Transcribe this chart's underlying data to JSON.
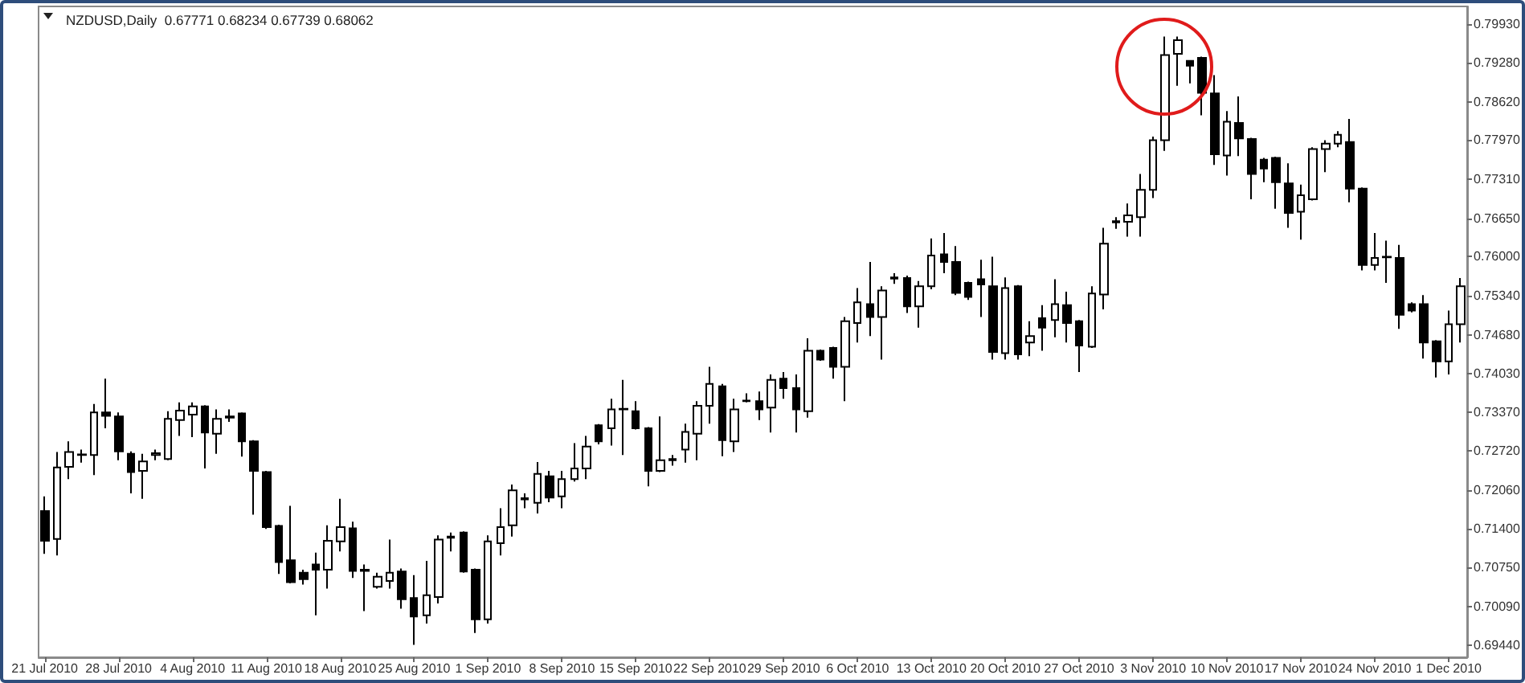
{
  "chart_data": {
    "type": "candlestick",
    "title": "NZDUSD,Daily  0.67771 0.68234 0.67739 0.68062",
    "categories": [
      "21 Jul 2010",
      null,
      null,
      null,
      null,
      null,
      "28 Jul 2010",
      null,
      null,
      null,
      null,
      null,
      "4 Aug 2010",
      null,
      null,
      null,
      null,
      null,
      "11 Aug 2010",
      null,
      null,
      null,
      null,
      null,
      "18 Aug 2010",
      null,
      null,
      null,
      null,
      null,
      "25 Aug 2010",
      null,
      null,
      null,
      null,
      null,
      "1 Sep 2010",
      null,
      null,
      null,
      null,
      null,
      "8 Sep 2010",
      null,
      null,
      null,
      null,
      null,
      "15 Sep 2010",
      null,
      null,
      null,
      null,
      null,
      "22 Sep 2010",
      null,
      null,
      null,
      null,
      null,
      "29 Sep 2010",
      null,
      null,
      null,
      null,
      null,
      "6 Oct 2010",
      null,
      null,
      null,
      null,
      null,
      "13 Oct 2010",
      null,
      null,
      null,
      null,
      null,
      "20 Oct 2010",
      null,
      null,
      null,
      null,
      null,
      "27 Oct 2010",
      null,
      null,
      null,
      null,
      null,
      "3 Nov 2010",
      null,
      null,
      null,
      null,
      null,
      "10 Nov 2010",
      null,
      null,
      null,
      null,
      null,
      "17 Nov 2010",
      null,
      null,
      null,
      null,
      null,
      "24 Nov 2010",
      null,
      null,
      null,
      null,
      null,
      "1 Dec 2010",
      null
    ],
    "ohlc": [
      [
        0.717,
        0.7195,
        0.7098,
        0.712
      ],
      [
        0.7123,
        0.727,
        0.7095,
        0.7244
      ],
      [
        0.7245,
        0.7288,
        0.7224,
        0.727
      ],
      [
        0.7265,
        0.7274,
        0.7252,
        0.7266
      ],
      [
        0.7265,
        0.7351,
        0.7231,
        0.7337
      ],
      [
        0.7337,
        0.7394,
        0.731,
        0.7331
      ],
      [
        0.733,
        0.7337,
        0.7256,
        0.7271
      ],
      [
        0.7267,
        0.7271,
        0.72,
        0.7236
      ],
      [
        0.7238,
        0.7267,
        0.7191,
        0.7254
      ],
      [
        0.7265,
        0.7274,
        0.7256,
        0.7268
      ],
      [
        0.7258,
        0.7339,
        0.7256,
        0.7326
      ],
      [
        0.7324,
        0.7354,
        0.7297,
        0.734
      ],
      [
        0.7333,
        0.7354,
        0.7295,
        0.7347
      ],
      [
        0.7347,
        0.7349,
        0.7242,
        0.7303
      ],
      [
        0.7301,
        0.7342,
        0.7267,
        0.7326
      ],
      [
        0.7328,
        0.7342,
        0.7321,
        0.733
      ],
      [
        0.7335,
        0.7337,
        0.7262,
        0.7288
      ],
      [
        0.7288,
        0.729,
        0.7164,
        0.7238
      ],
      [
        0.7236,
        0.7238,
        0.714,
        0.7143
      ],
      [
        0.7145,
        0.7147,
        0.7064,
        0.7084
      ],
      [
        0.7087,
        0.7179,
        0.7048,
        0.705
      ],
      [
        0.7066,
        0.7071,
        0.7046,
        0.7055
      ],
      [
        0.708,
        0.71,
        0.6994,
        0.7071
      ],
      [
        0.7071,
        0.7146,
        0.7039,
        0.712
      ],
      [
        0.7119,
        0.7191,
        0.7102,
        0.7143
      ],
      [
        0.7141,
        0.7152,
        0.7057,
        0.7069
      ],
      [
        0.7071,
        0.708,
        0.7001,
        0.7069
      ],
      [
        0.7042,
        0.7066,
        0.7039,
        0.7059
      ],
      [
        0.7052,
        0.7122,
        0.7039,
        0.7066
      ],
      [
        0.7068,
        0.7073,
        0.7005,
        0.7021
      ],
      [
        0.7023,
        0.7062,
        0.6944,
        0.6992
      ],
      [
        0.6994,
        0.7086,
        0.698,
        0.7028
      ],
      [
        0.7025,
        0.7129,
        0.7014,
        0.7122
      ],
      [
        0.7125,
        0.7134,
        0.7102,
        0.7127
      ],
      [
        0.7134,
        0.7136,
        0.7066,
        0.7068
      ],
      [
        0.7071,
        0.7073,
        0.6964,
        0.6987
      ],
      [
        0.6987,
        0.7129,
        0.698,
        0.7119
      ],
      [
        0.7116,
        0.7175,
        0.7095,
        0.7143
      ],
      [
        0.7146,
        0.7215,
        0.7127,
        0.7205
      ],
      [
        0.719,
        0.72,
        0.7175,
        0.7192
      ],
      [
        0.7184,
        0.7253,
        0.7166,
        0.7233
      ],
      [
        0.7229,
        0.7238,
        0.7185,
        0.7193
      ],
      [
        0.7195,
        0.7238,
        0.7175,
        0.7224
      ],
      [
        0.7224,
        0.7285,
        0.722,
        0.7242
      ],
      [
        0.7242,
        0.7297,
        0.7224,
        0.7279
      ],
      [
        0.7315,
        0.7317,
        0.7283,
        0.7288
      ],
      [
        0.731,
        0.736,
        0.7281,
        0.7342
      ],
      [
        0.7342,
        0.7392,
        0.7265,
        0.7343
      ],
      [
        0.7339,
        0.7356,
        0.7308,
        0.731
      ],
      [
        0.731,
        0.7312,
        0.7212,
        0.7238
      ],
      [
        0.7238,
        0.733,
        0.7236,
        0.7256
      ],
      [
        0.7256,
        0.7265,
        0.7247,
        0.7258
      ],
      [
        0.7274,
        0.7318,
        0.7252,
        0.7304
      ],
      [
        0.7301,
        0.7356,
        0.7256,
        0.7348
      ],
      [
        0.7348,
        0.7414,
        0.7318,
        0.7385
      ],
      [
        0.7381,
        0.7385,
        0.7263,
        0.729
      ],
      [
        0.7288,
        0.736,
        0.727,
        0.7342
      ],
      [
        0.7356,
        0.7369,
        0.7354,
        0.7357
      ],
      [
        0.7356,
        0.7372,
        0.7324,
        0.7342
      ],
      [
        0.7345,
        0.7401,
        0.7303,
        0.7392
      ],
      [
        0.7394,
        0.7405,
        0.736,
        0.7378
      ],
      [
        0.7378,
        0.7401,
        0.7303,
        0.7342
      ],
      [
        0.7339,
        0.7462,
        0.7328,
        0.7441
      ],
      [
        0.7441,
        0.7443,
        0.7424,
        0.7426
      ],
      [
        0.7446,
        0.7448,
        0.7394,
        0.7414
      ],
      [
        0.7414,
        0.7498,
        0.7356,
        0.7491
      ],
      [
        0.7488,
        0.7547,
        0.7455,
        0.7523
      ],
      [
        0.752,
        0.7591,
        0.7466,
        0.7498
      ],
      [
        0.7498,
        0.755,
        0.7426,
        0.7543
      ],
      [
        0.7563,
        0.7572,
        0.7554,
        0.7565
      ],
      [
        0.7564,
        0.7568,
        0.7505,
        0.7516
      ],
      [
        0.7516,
        0.7559,
        0.748,
        0.755
      ],
      [
        0.755,
        0.7631,
        0.7545,
        0.7602
      ],
      [
        0.7604,
        0.764,
        0.7572,
        0.7591
      ],
      [
        0.7591,
        0.7618,
        0.7535,
        0.7539
      ],
      [
        0.7556,
        0.7558,
        0.7527,
        0.7532
      ],
      [
        0.7562,
        0.7595,
        0.7498,
        0.7553
      ],
      [
        0.755,
        0.76,
        0.7426,
        0.7439
      ],
      [
        0.7437,
        0.7565,
        0.7426,
        0.7547
      ],
      [
        0.755,
        0.7552,
        0.7426,
        0.7435
      ],
      [
        0.7455,
        0.7491,
        0.7432,
        0.7466
      ],
      [
        0.7496,
        0.7518,
        0.7441,
        0.748
      ],
      [
        0.7493,
        0.7562,
        0.7464,
        0.752
      ],
      [
        0.7518,
        0.7541,
        0.7455,
        0.7488
      ],
      [
        0.7491,
        0.7493,
        0.7405,
        0.745
      ],
      [
        0.7448,
        0.755,
        0.7446,
        0.7538
      ],
      [
        0.7536,
        0.7649,
        0.7511,
        0.7622
      ],
      [
        0.7658,
        0.7667,
        0.7647,
        0.766
      ],
      [
        0.7659,
        0.769,
        0.7634,
        0.767
      ],
      [
        0.7667,
        0.774,
        0.7634,
        0.7713
      ],
      [
        0.7713,
        0.7803,
        0.7699,
        0.7797
      ],
      [
        0.7797,
        0.7972,
        0.7779,
        0.7941
      ],
      [
        0.7943,
        0.7972,
        0.7889,
        0.7966
      ],
      [
        0.7931,
        0.7932,
        0.7893,
        0.7923
      ],
      [
        0.7936,
        0.7938,
        0.7839,
        0.7877
      ],
      [
        0.7876,
        0.7907,
        0.7755,
        0.7773
      ],
      [
        0.7771,
        0.7846,
        0.7737,
        0.7828
      ],
      [
        0.7826,
        0.7871,
        0.777,
        0.78
      ],
      [
        0.7799,
        0.7801,
        0.7697,
        0.774
      ],
      [
        0.7764,
        0.7767,
        0.7726,
        0.7749
      ],
      [
        0.7767,
        0.7769,
        0.7681,
        0.7726
      ],
      [
        0.7724,
        0.7758,
        0.7649,
        0.7674
      ],
      [
        0.7676,
        0.7722,
        0.7629,
        0.7704
      ],
      [
        0.7697,
        0.7785,
        0.7695,
        0.7782
      ],
      [
        0.7782,
        0.7797,
        0.7743,
        0.7791
      ],
      [
        0.7791,
        0.7812,
        0.7785,
        0.7806
      ],
      [
        0.7794,
        0.7833,
        0.7692,
        0.7715
      ],
      [
        0.7715,
        0.7717,
        0.7577,
        0.7586
      ],
      [
        0.7586,
        0.764,
        0.7577,
        0.7598
      ],
      [
        0.7599,
        0.7627,
        0.7556,
        0.76
      ],
      [
        0.7598,
        0.762,
        0.7478,
        0.7502
      ],
      [
        0.752,
        0.7523,
        0.7506,
        0.7509
      ],
      [
        0.752,
        0.7535,
        0.7428,
        0.7455
      ],
      [
        0.7457,
        0.7459,
        0.7396,
        0.7423
      ],
      [
        0.7423,
        0.7509,
        0.7401,
        0.7486
      ],
      [
        0.7486,
        0.7564,
        0.7455,
        0.755
      ]
    ],
    "color": "#000000",
    "colors": [
      "#000000",
      "#ffffff",
      "#ffffff",
      "#ffffff",
      "#ffffff",
      "#000000",
      "#000000",
      "#000000",
      "#ffffff",
      "#ffffff",
      "#ffffff",
      "#ffffff",
      "#ffffff",
      "#000000",
      "#ffffff",
      "#ffffff",
      "#000000",
      "#000000",
      "#000000",
      "#000000",
      "#000000",
      "#000000",
      "#000000",
      "#ffffff",
      "#ffffff",
      "#000000",
      "#000000",
      "#ffffff",
      "#ffffff",
      "#000000",
      "#000000",
      "#ffffff",
      "#ffffff",
      "#ffffff",
      "#000000",
      "#000000",
      "#ffffff",
      "#ffffff",
      "#ffffff",
      "#ffffff",
      "#ffffff",
      "#000000",
      "#ffffff",
      "#ffffff",
      "#ffffff",
      "#000000",
      "#ffffff",
      "#ffffff",
      "#000000",
      "#000000",
      "#ffffff",
      "#ffffff",
      "#ffffff",
      "#ffffff",
      "#ffffff",
      "#000000",
      "#ffffff",
      "#ffffff",
      "#000000",
      "#ffffff",
      "#000000",
      "#000000",
      "#ffffff",
      "#000000",
      "#000000",
      "#ffffff",
      "#ffffff",
      "#000000",
      "#ffffff",
      "#ffffff",
      "#000000",
      "#ffffff",
      "#ffffff",
      "#000000",
      "#000000",
      "#000000",
      "#000000",
      "#000000",
      "#ffffff",
      "#000000",
      "#ffffff",
      "#000000",
      "#ffffff",
      "#000000",
      "#000000",
      "#ffffff",
      "#ffffff",
      "#ffffff",
      "#ffffff",
      "#ffffff",
      "#ffffff",
      "#ffffff",
      "#ffffff",
      "#000000",
      "#000000",
      "#000000",
      "#ffffff",
      "#000000",
      "#000000",
      "#000000",
      "#000000",
      "#000000",
      "#ffffff",
      "#ffffff",
      "#ffffff",
      "#ffffff",
      "#000000",
      "#000000",
      "#ffffff",
      "#ffffff",
      "#000000",
      "#000000",
      "#000000",
      "#000000",
      "#ffffff",
      "#ffffff"
    ],
    "ylim": [
      0.6923,
      0.8023
    ],
    "yticks": [
      {
        "value": 0.6944,
        "label": "0.69440"
      },
      {
        "value": 0.7009,
        "label": "0.70090"
      },
      {
        "value": 0.7075,
        "label": "0.70750"
      },
      {
        "value": 0.714,
        "label": "0.71400"
      },
      {
        "value": 0.7206,
        "label": "0.72060"
      },
      {
        "value": 0.7272,
        "label": "0.72720"
      },
      {
        "value": 0.7337,
        "label": "0.73370"
      },
      {
        "value": 0.7403,
        "label": "0.74030"
      },
      {
        "value": 0.7468,
        "label": "0.74680"
      },
      {
        "value": 0.7534,
        "label": "0.75340"
      },
      {
        "value": 0.76,
        "label": "0.76000"
      },
      {
        "value": 0.7665,
        "label": "0.76650"
      },
      {
        "value": 0.7731,
        "label": "0.77310"
      },
      {
        "value": 0.7797,
        "label": "0.77970"
      },
      {
        "value": 0.7862,
        "label": "0.78620"
      },
      {
        "value": 0.7928,
        "label": "0.79280"
      },
      {
        "value": 0.7993,
        "label": "0.79930"
      }
    ],
    "grid": false
  }
}
